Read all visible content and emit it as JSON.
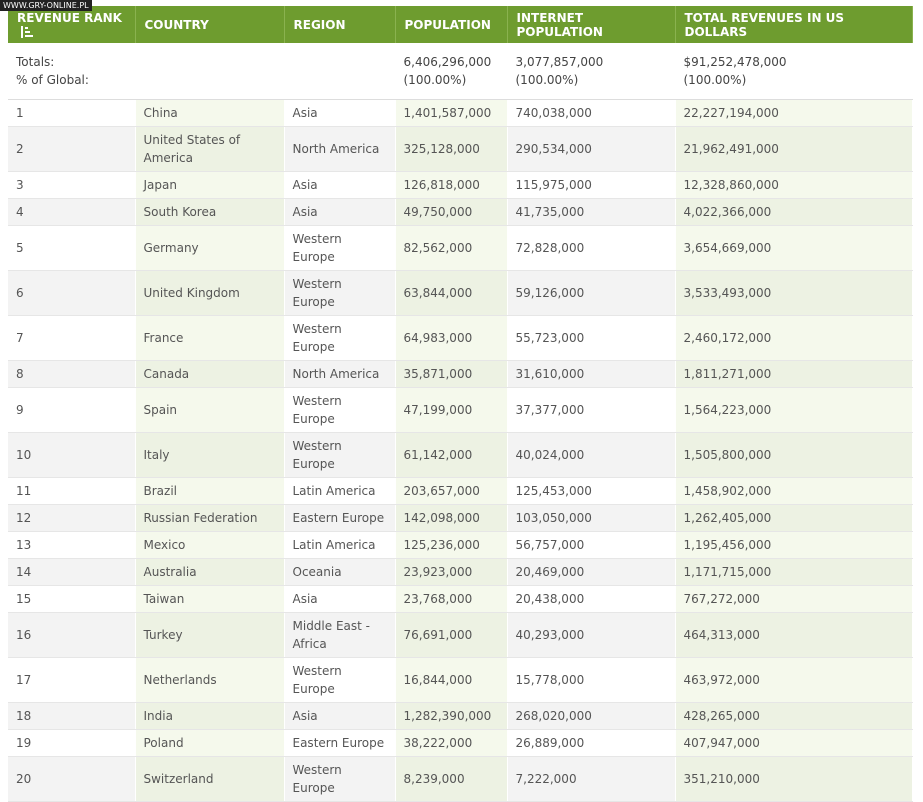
{
  "watermark": "WWW.GRY-ONLINE.PL",
  "table": {
    "headers": [
      "REVENUE RANK",
      "COUNTRY",
      "REGION",
      "POPULATION",
      "INTERNET POPULATION",
      "TOTAL REVENUES IN US DOLLARS"
    ],
    "totals": {
      "labels": [
        "Totals:",
        "% of Global:"
      ],
      "population": [
        "6,406,296,000",
        "(100.00%)"
      ],
      "internet_population": [
        "3,077,857,000",
        "(100.00%)"
      ],
      "revenues": [
        "$91,252,478,000",
        "(100.00%)"
      ]
    },
    "rows": [
      [
        "1",
        "China",
        "Asia",
        "1,401,587,000",
        "740,038,000",
        "22,227,194,000"
      ],
      [
        "2",
        "United States of America",
        "North America",
        "325,128,000",
        "290,534,000",
        "21,962,491,000"
      ],
      [
        "3",
        "Japan",
        "Asia",
        "126,818,000",
        "115,975,000",
        "12,328,860,000"
      ],
      [
        "4",
        "South Korea",
        "Asia",
        "49,750,000",
        "41,735,000",
        "4,022,366,000"
      ],
      [
        "5",
        "Germany",
        "Western Europe",
        "82,562,000",
        "72,828,000",
        "3,654,669,000"
      ],
      [
        "6",
        "United Kingdom",
        "Western Europe",
        "63,844,000",
        "59,126,000",
        "3,533,493,000"
      ],
      [
        "7",
        "France",
        "Western Europe",
        "64,983,000",
        "55,723,000",
        "2,460,172,000"
      ],
      [
        "8",
        "Canada",
        "North America",
        "35,871,000",
        "31,610,000",
        "1,811,271,000"
      ],
      [
        "9",
        "Spain",
        "Western Europe",
        "47,199,000",
        "37,377,000",
        "1,564,223,000"
      ],
      [
        "10",
        "Italy",
        "Western Europe",
        "61,142,000",
        "40,024,000",
        "1,505,800,000"
      ],
      [
        "11",
        "Brazil",
        "Latin America",
        "203,657,000",
        "125,453,000",
        "1,458,902,000"
      ],
      [
        "12",
        "Russian Federation",
        "Eastern Europe",
        "142,098,000",
        "103,050,000",
        "1,262,405,000"
      ],
      [
        "13",
        "Mexico",
        "Latin America",
        "125,236,000",
        "56,757,000",
        "1,195,456,000"
      ],
      [
        "14",
        "Australia",
        "Oceania",
        "23,923,000",
        "20,469,000",
        "1,171,715,000"
      ],
      [
        "15",
        "Taiwan",
        "Asia",
        "23,768,000",
        "20,438,000",
        "767,272,000"
      ],
      [
        "16",
        "Turkey",
        "Middle East - Africa",
        "76,691,000",
        "40,293,000",
        "464,313,000"
      ],
      [
        "17",
        "Netherlands",
        "Western Europe",
        "16,844,000",
        "15,778,000",
        "463,972,000"
      ],
      [
        "18",
        "India",
        "Asia",
        "1,282,390,000",
        "268,020,000",
        "428,265,000"
      ],
      [
        "19",
        "Poland",
        "Eastern Europe",
        "38,222,000",
        "26,889,000",
        "407,947,000"
      ],
      [
        "20",
        "Switzerland",
        "Western Europe",
        "8,239,000",
        "7,222,000",
        "351,210,000"
      ]
    ]
  }
}
